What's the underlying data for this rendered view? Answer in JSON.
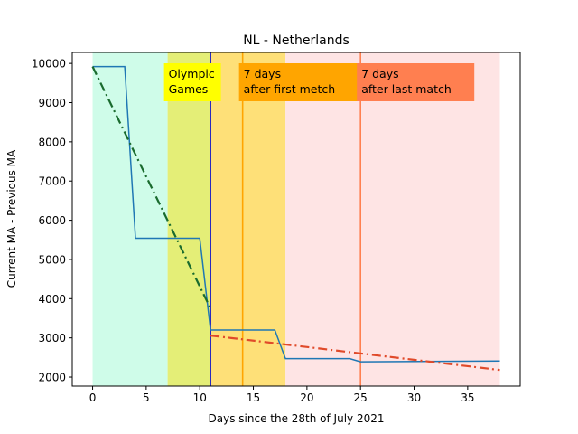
{
  "chart_data": {
    "type": "line",
    "title": "NL - Netherlands",
    "xlabel": "Days since the 28th of July 2021",
    "ylabel": "Current MA - Previous MA",
    "xlim": [
      -1.9,
      39.9
    ],
    "ylim": [
      1770,
      10280
    ],
    "xticks": [
      0,
      5,
      10,
      15,
      20,
      25,
      30,
      35
    ],
    "yticks": [
      2000,
      3000,
      4000,
      5000,
      6000,
      7000,
      8000,
      9000,
      10000
    ],
    "grid": false,
    "regions": [
      {
        "x0": 0,
        "x1": 7,
        "color": "#cffce9"
      },
      {
        "x0": 7,
        "x1": 11,
        "color": "#e4ee77"
      },
      {
        "x0": 11,
        "x1": 18,
        "color": "#fee078"
      },
      {
        "x0": 18,
        "x1": 38,
        "color": "#fee4e4"
      }
    ],
    "vlines": [
      {
        "x": 11,
        "color": "#0a10c8"
      },
      {
        "x": 14,
        "color": "#ffa500"
      },
      {
        "x": 25,
        "color": "#ff7f50"
      }
    ],
    "annotations": [
      {
        "lines": [
          "Olympic",
          "Games"
        ],
        "x": 7,
        "color": "#ffff00"
      },
      {
        "lines": [
          "7 days",
          "after first metch"
        ],
        "x": 14,
        "color": "#ffa500"
      },
      {
        "lines": [
          "7 days",
          "after last match"
        ],
        "x": 25,
        "color": "#ff7f50"
      }
    ],
    "series": [
      {
        "style": "solid",
        "color": "#1f77b4",
        "x": [
          0,
          3,
          4,
          10,
          11,
          17,
          18,
          24,
          25,
          38
        ],
        "y": [
          9920,
          9920,
          5540,
          5540,
          3200,
          3200,
          2470,
          2470,
          2390,
          2410
        ]
      },
      {
        "style": "dashdot",
        "color": "#1a6b2e",
        "x": [
          0,
          11
        ],
        "y": [
          9920,
          3750
        ]
      },
      {
        "style": "dashdot",
        "color": "#e04a2a",
        "x": [
          11,
          38
        ],
        "y": [
          3060,
          2180
        ]
      }
    ]
  }
}
